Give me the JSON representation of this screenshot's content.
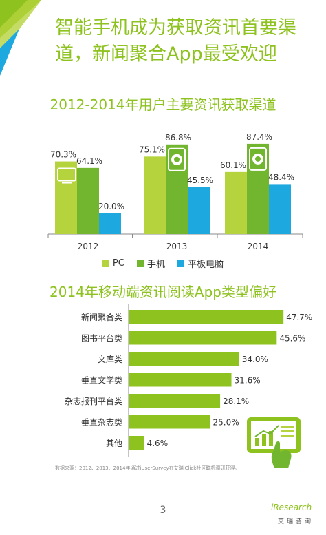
{
  "title": "智能手机成为获取资讯首要渠道，新闻聚合App最受欢迎",
  "chart1": {
    "title": "2012-2014年用户主要资讯获取渠道"
  },
  "chart2": {
    "title": "2014年移动端资讯阅读App类型偏好"
  },
  "source": "数据来源：2012、2013、2014年通过iUserSurvey在艾瑞iClick社区联机调研获得。",
  "page_number": "3",
  "logo": {
    "brand": "iResearch",
    "sub": "艾瑞咨询"
  },
  "colors": {
    "pc": "#b5d33d",
    "phone": "#72b62f",
    "tablet": "#1ea8e0",
    "accent": "#8dc21f"
  },
  "chart_data": [
    {
      "type": "bar",
      "title": "2012-2014年用户主要资讯获取渠道",
      "categories": [
        "2012",
        "2013",
        "2014"
      ],
      "series": [
        {
          "name": "PC",
          "values": [
            70.3,
            75.1,
            60.1
          ],
          "labels": [
            "70.3%",
            "75.1%",
            "60.1%"
          ]
        },
        {
          "name": "手机",
          "values": [
            64.1,
            86.8,
            87.4
          ],
          "labels": [
            "64.1%",
            "86.8%",
            "87.4%"
          ]
        },
        {
          "name": "平板电脑",
          "values": [
            20.0,
            45.5,
            48.4
          ],
          "labels": [
            "20.0%",
            "45.5%",
            "48.4%"
          ]
        }
      ],
      "ylim": [
        0,
        100
      ],
      "legend": "bottom",
      "grid": false
    },
    {
      "type": "bar",
      "orientation": "horizontal",
      "title": "2014年移动端资讯阅读App类型偏好",
      "categories": [
        "新闻聚合类",
        "图书平台类",
        "文库类",
        "垂直文学类",
        "杂志报刊平台类",
        "垂直杂志类",
        "其他"
      ],
      "values": [
        47.7,
        45.6,
        34.0,
        31.6,
        28.1,
        25.0,
        4.6
      ],
      "labels": [
        "47.7%",
        "45.6%",
        "34.0%",
        "31.6%",
        "28.1%",
        "25.0%",
        "4.6%"
      ],
      "xlim": [
        0,
        50
      ],
      "grid": false
    }
  ]
}
